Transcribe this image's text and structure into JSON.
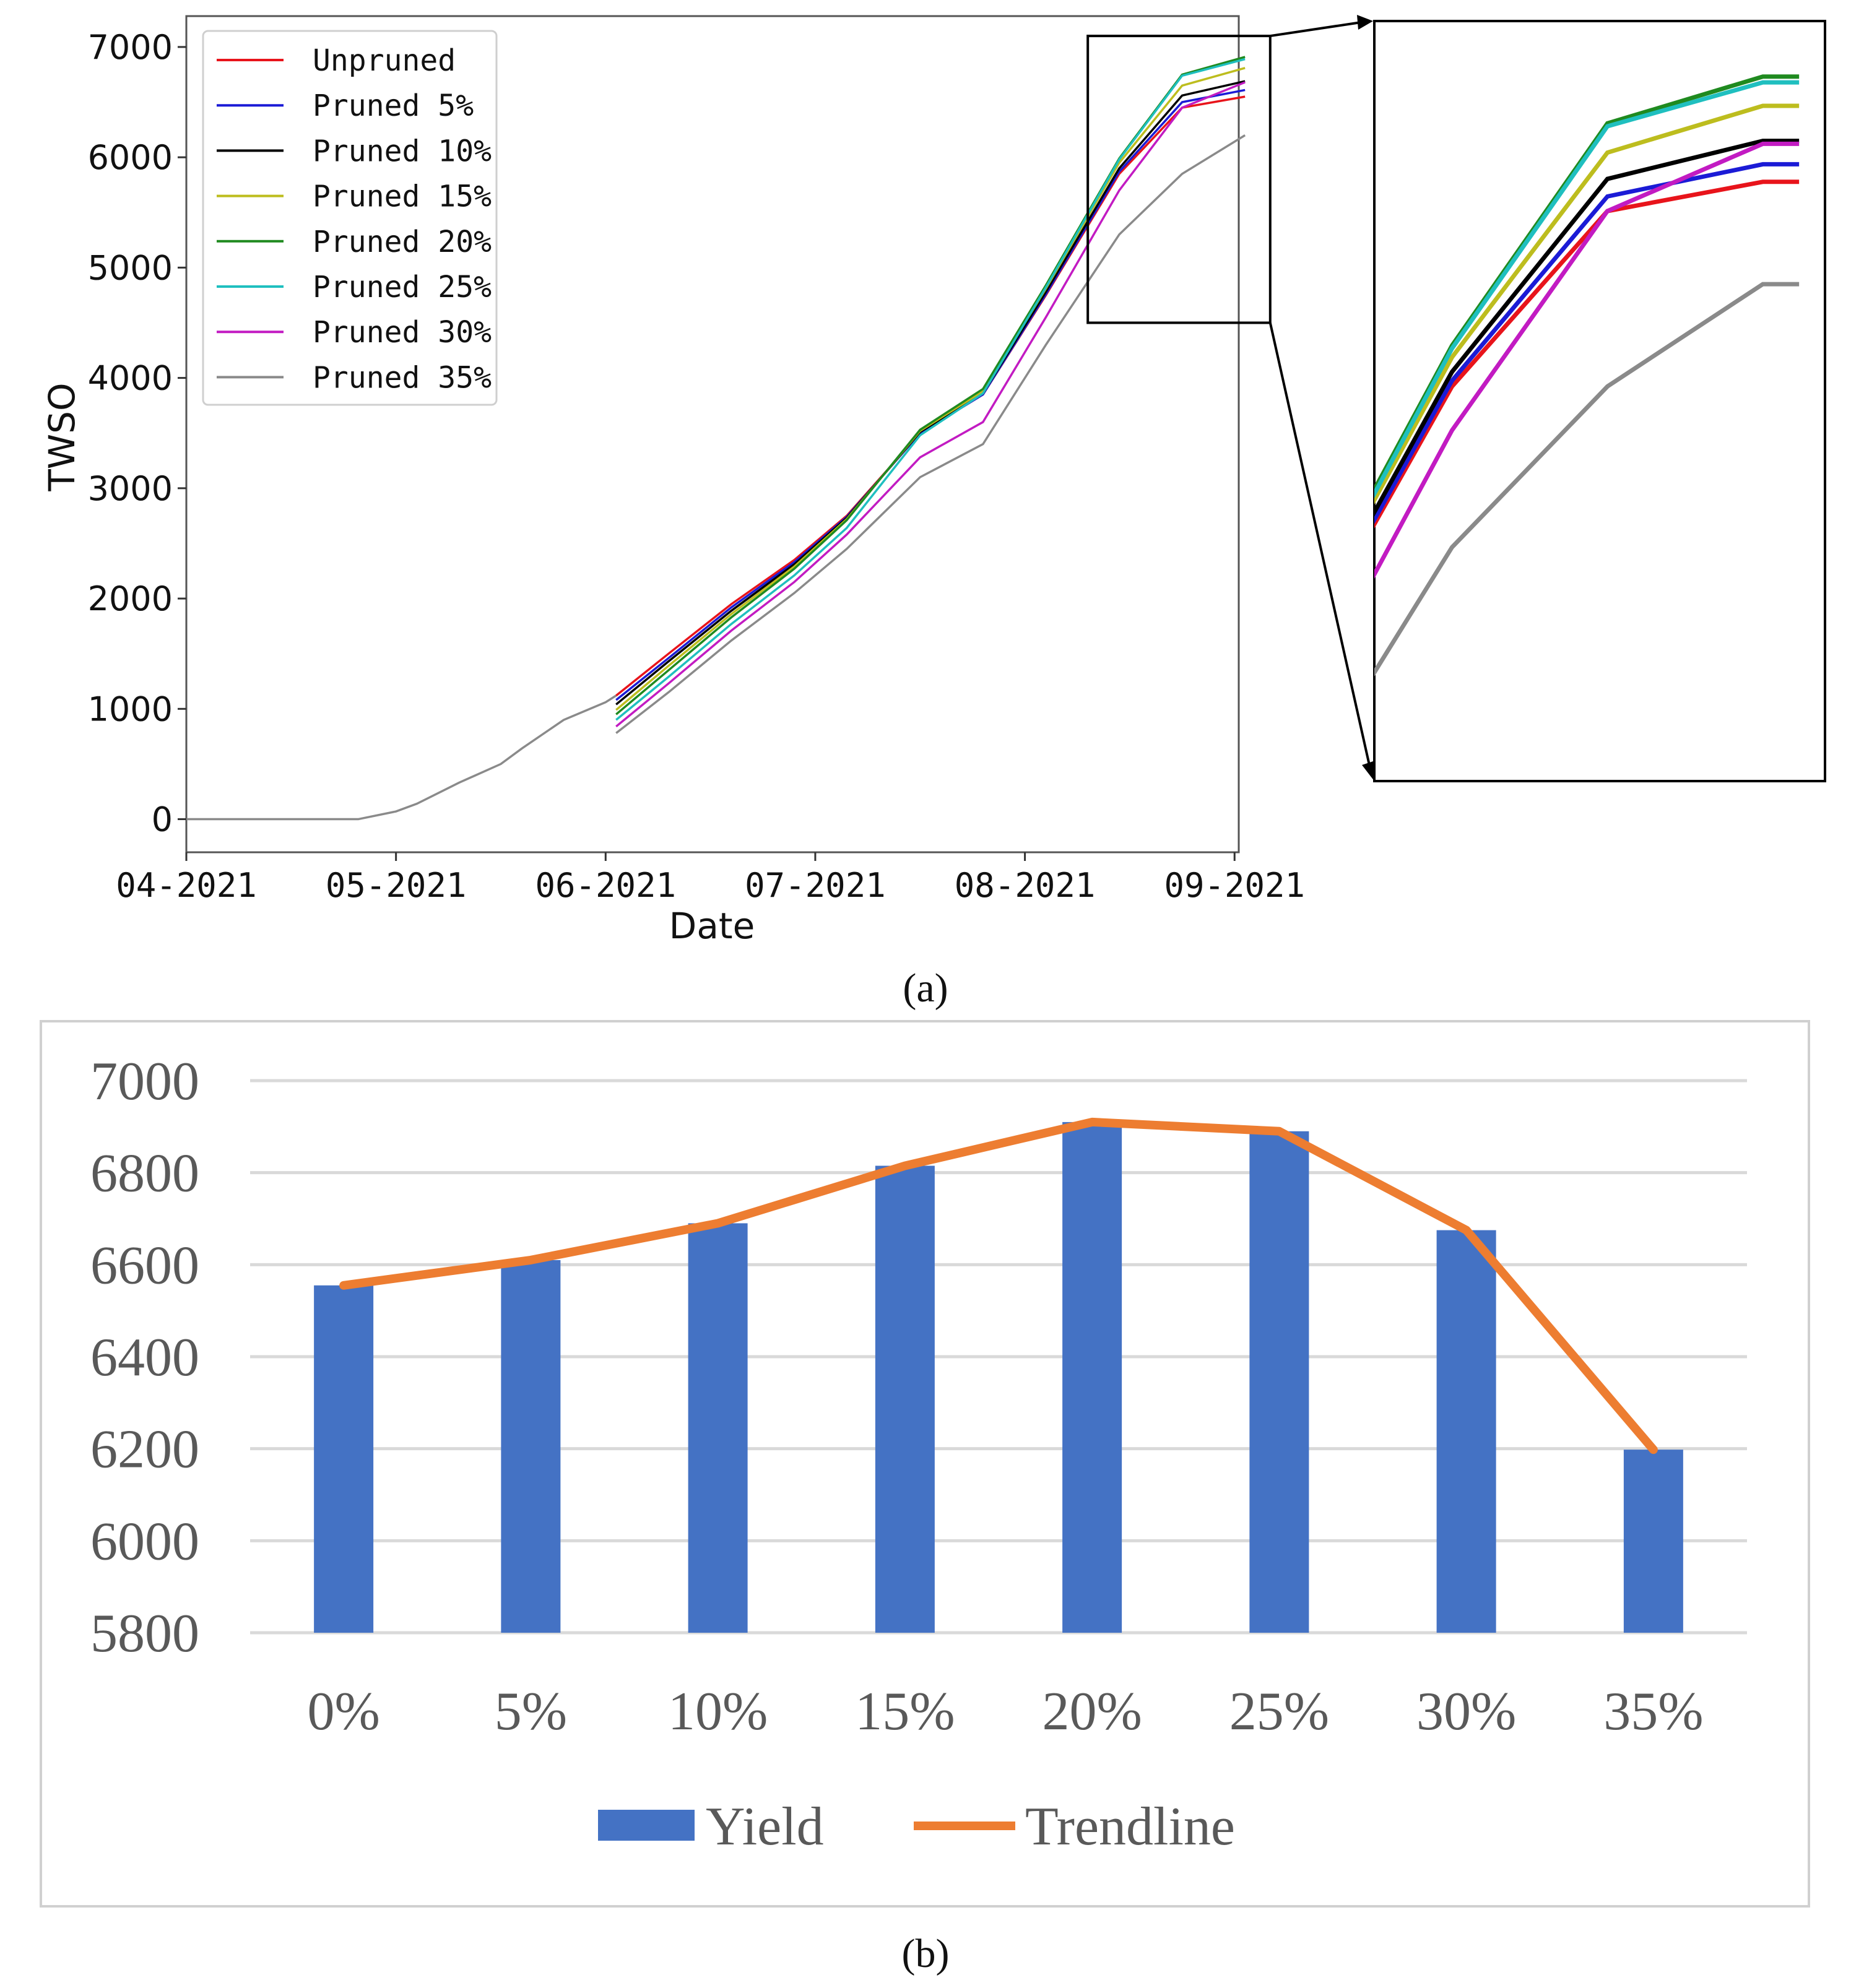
{
  "chart_data": [
    {
      "type": "line",
      "panel_label": "a",
      "title": "",
      "xlabel": "Date",
      "ylabel": "TWSO",
      "xlim": [
        0,
        5.02
      ],
      "ylim": [
        -300,
        7280
      ],
      "x_tick_values": [
        0,
        1,
        2,
        3,
        4,
        5
      ],
      "x_tick_labels": [
        "04-2021",
        "05-2021",
        "06-2021",
        "07-2021",
        "08-2021",
        "09-2021"
      ],
      "y_ticks": [
        0,
        1000,
        2000,
        3000,
        4000,
        5000,
        6000,
        7000
      ],
      "legend_position": "top-left",
      "shared_baseline": {
        "name": "Unpruned",
        "x": [
          0,
          0.5,
          0.82,
          1.0,
          1.1,
          1.3,
          1.5,
          1.6,
          1.8,
          2.0,
          2.05
        ],
        "values": [
          0,
          0,
          0,
          70,
          140,
          330,
          500,
          640,
          900,
          1060,
          1120
        ]
      },
      "series": [
        {
          "name": "Unpruned",
          "color": "#e8141b",
          "x": [
            2.05,
            2.3,
            2.6,
            2.9,
            3.15,
            3.5,
            3.8,
            4.1,
            4.45,
            4.75,
            5.05
          ],
          "values": [
            1120,
            1500,
            1950,
            2350,
            2750,
            3500,
            3850,
            4750,
            5850,
            6450,
            6550
          ]
        },
        {
          "name": "Pruned 5%",
          "color": "#1b1bd6",
          "x": [
            2.05,
            2.3,
            2.6,
            2.9,
            3.15,
            3.5,
            3.8,
            4.1,
            4.45,
            4.75,
            5.05
          ],
          "values": [
            1080,
            1460,
            1920,
            2330,
            2740,
            3500,
            3850,
            4760,
            5870,
            6500,
            6610
          ]
        },
        {
          "name": "Pruned 10%",
          "color": "#000000",
          "x": [
            2.05,
            2.3,
            2.6,
            2.9,
            3.15,
            3.5,
            3.8,
            4.1,
            4.45,
            4.75,
            5.05
          ],
          "values": [
            1040,
            1430,
            1890,
            2310,
            2730,
            3510,
            3860,
            4780,
            5900,
            6560,
            6690
          ]
        },
        {
          "name": "Pruned 15%",
          "color": "#bdbd1e",
          "x": [
            2.05,
            2.3,
            2.6,
            2.9,
            3.15,
            3.5,
            3.8,
            4.1,
            4.45,
            4.75,
            5.05
          ],
          "values": [
            990,
            1390,
            1860,
            2290,
            2720,
            3520,
            3880,
            4810,
            5950,
            6650,
            6810
          ]
        },
        {
          "name": "Pruned 20%",
          "color": "#1f8a1f",
          "x": [
            2.05,
            2.3,
            2.6,
            2.9,
            3.15,
            3.5,
            3.8,
            4.1,
            4.45,
            4.75,
            5.05
          ],
          "values": [
            950,
            1350,
            1830,
            2270,
            2710,
            3530,
            3900,
            4840,
            5990,
            6750,
            6910
          ]
        },
        {
          "name": "Pruned 25%",
          "color": "#1fbfbf",
          "x": [
            2.05,
            2.3,
            2.6,
            2.9,
            3.15,
            3.5,
            3.8,
            4.1,
            4.45,
            4.75,
            5.05
          ],
          "values": [
            900,
            1290,
            1770,
            2210,
            2640,
            3480,
            3860,
            4820,
            5980,
            6740,
            6890
          ]
        },
        {
          "name": "Pruned 30%",
          "color": "#c21bc2",
          "x": [
            2.05,
            2.3,
            2.6,
            2.9,
            3.15,
            3.5,
            3.8,
            4.1,
            4.45,
            4.75,
            5.05
          ],
          "values": [
            840,
            1230,
            1710,
            2150,
            2580,
            3280,
            3600,
            4550,
            5700,
            6450,
            6680
          ]
        },
        {
          "name": "Pruned 35%",
          "color": "#8a8a8a",
          "x": [
            2.05,
            2.3,
            2.6,
            2.9,
            3.15,
            3.5,
            3.8,
            4.1,
            4.45,
            4.75,
            5.05
          ],
          "values": [
            780,
            1150,
            1620,
            2050,
            2450,
            3100,
            3400,
            4300,
            5300,
            5850,
            6200
          ]
        }
      ],
      "inset": {
        "note": "zoomed view of the rectangle shown",
        "x_range": [
          4.3,
          5.17
        ],
        "y_range": [
          4500,
          7100
        ]
      }
    },
    {
      "type": "bar",
      "panel_label": "b",
      "title": "",
      "xlabel": "",
      "ylabel": "",
      "categories": [
        "0%",
        "5%",
        "10%",
        "15%",
        "20%",
        "25%",
        "30%",
        "35%"
      ],
      "ylim": [
        5800,
        7000
      ],
      "y_ticks": [
        5800,
        6000,
        6200,
        6400,
        6600,
        6800,
        7000
      ],
      "legend_position": "bottom",
      "series": [
        {
          "name": "Yield",
          "kind": "bar",
          "color": "#4472c4",
          "values": [
            6555,
            6610,
            6690,
            6815,
            6910,
            6890,
            6675,
            6198
          ]
        },
        {
          "name": "Trendline",
          "kind": "line",
          "color": "#ed7d31",
          "values": [
            6555,
            6610,
            6690,
            6815,
            6910,
            6890,
            6675,
            6198
          ]
        }
      ]
    }
  ],
  "captions": {
    "a": "(a)",
    "b": "(b)"
  }
}
